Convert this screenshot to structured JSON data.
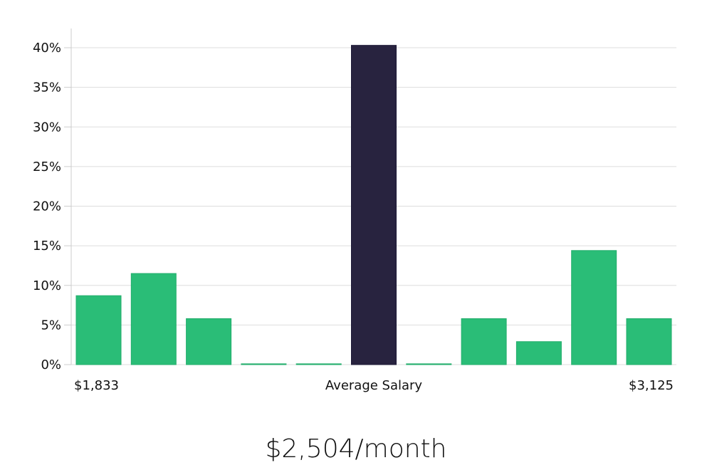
{
  "headline": "$2,504/month",
  "colors": {
    "bar": "#2abd77",
    "highlight": "#28233f",
    "grid": "#dddddd",
    "axis": "#cccccc"
  },
  "chart_data": {
    "type": "bar",
    "y_unit": "%",
    "ylim": [
      0,
      42
    ],
    "yticks": [
      0,
      5,
      10,
      15,
      20,
      25,
      30,
      35,
      40
    ],
    "ytick_labels": [
      "0%",
      "5%",
      "10%",
      "15%",
      "20%",
      "25%",
      "30%",
      "35%",
      "40%"
    ],
    "grid": true,
    "values": [
      8.7,
      11.5,
      5.8,
      0.1,
      0.1,
      40.3,
      0.1,
      5.8,
      2.9,
      14.4,
      5.8
    ],
    "highlight_index": 5,
    "x_labels": {
      "left": "$1,833",
      "center": "Average Salary",
      "right": "$3,125"
    }
  }
}
